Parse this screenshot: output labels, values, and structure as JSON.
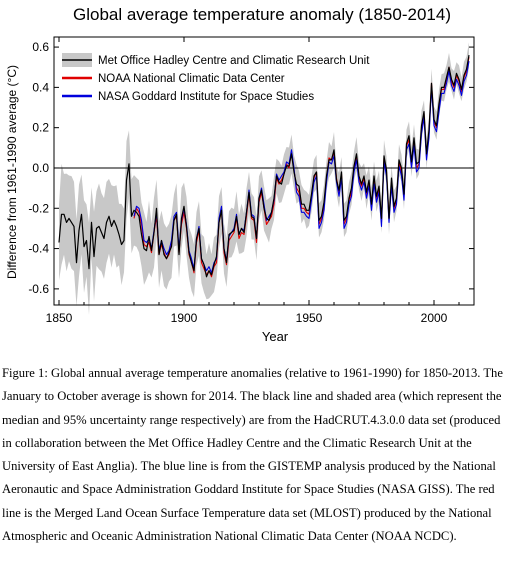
{
  "chart_data": {
    "type": "line",
    "title": "Global average temperature anomaly (1850-2014)",
    "xlabel": "Year",
    "ylabel": "Difference from 1961-1990 average (°C)",
    "xlim": [
      1848,
      2016
    ],
    "ylim": [
      -0.68,
      0.65
    ],
    "xticks": [
      1850,
      1900,
      1950,
      2000
    ],
    "yticks": [
      -0.6,
      -0.4,
      -0.2,
      0.0,
      0.2,
      0.4,
      0.6
    ],
    "ytick_labels": [
      "-0.6",
      "-0.4",
      "-0.2",
      "0.0",
      "0.2",
      "0.4",
      "0.6"
    ],
    "zero_line": true,
    "grid": false,
    "legend_position": "top",
    "colors": {
      "hadcrut": "#000000",
      "band": "#c8c8c8",
      "noaa": "#e00000",
      "nasa": "#0000dd"
    },
    "legend": [
      {
        "name": "Met Office Hadley Centre and Climatic Research Unit",
        "style": "band-line",
        "color": "#000000"
      },
      {
        "name": "NOAA National Climatic Data Center",
        "style": "line",
        "color": "#e00000"
      },
      {
        "name": "NASA Goddard Institute for Space Studies",
        "style": "line",
        "color": "#0000dd"
      }
    ],
    "series": [
      {
        "name": "Met Office Hadley Centre and Climatic Research Unit",
        "start_year": 1850,
        "values": [
          -0.37,
          -0.23,
          -0.23,
          -0.27,
          -0.25,
          -0.27,
          -0.29,
          -0.47,
          -0.31,
          -0.23,
          -0.39,
          -0.36,
          -0.5,
          -0.27,
          -0.44,
          -0.3,
          -0.29,
          -0.32,
          -0.35,
          -0.27,
          -0.24,
          -0.29,
          -0.26,
          -0.29,
          -0.33,
          -0.38,
          -0.36,
          -0.06,
          0.02,
          -0.24,
          -0.21,
          -0.22,
          -0.24,
          -0.33,
          -0.4,
          -0.41,
          -0.34,
          -0.41,
          -0.32,
          -0.2,
          -0.43,
          -0.36,
          -0.43,
          -0.45,
          -0.42,
          -0.39,
          -0.26,
          -0.23,
          -0.43,
          -0.25,
          -0.19,
          -0.29,
          -0.42,
          -0.47,
          -0.51,
          -0.35,
          -0.3,
          -0.45,
          -0.48,
          -0.54,
          -0.51,
          -0.53,
          -0.48,
          -0.44,
          -0.27,
          -0.21,
          -0.4,
          -0.47,
          -0.33,
          -0.32,
          -0.31,
          -0.24,
          -0.33,
          -0.3,
          -0.32,
          -0.22,
          -0.12,
          -0.24,
          -0.25,
          -0.35,
          -0.15,
          -0.11,
          -0.2,
          -0.25,
          -0.26,
          -0.22,
          -0.15,
          -0.04,
          -0.07,
          -0.08,
          -0.03,
          0.01,
          0.01,
          0.07,
          -0.02,
          -0.08,
          -0.09,
          -0.18,
          -0.18,
          -0.21,
          -0.21,
          -0.13,
          -0.04,
          -0.02,
          -0.26,
          -0.24,
          -0.17,
          -0.04,
          0.04,
          0.04,
          0.09,
          -0.06,
          -0.11,
          -0.02,
          -0.26,
          -0.24,
          -0.15,
          -0.1,
          0.01,
          0.07,
          -0.04,
          -0.08,
          -0.04,
          -0.12,
          -0.06,
          -0.18,
          -0.04,
          -0.14,
          -0.09,
          -0.25,
          0.06,
          -0.01,
          -0.25,
          -0.05,
          -0.19,
          -0.15,
          0.04,
          0.0,
          -0.13,
          0.12,
          0.16,
          0.03,
          0.15,
          0.02,
          0.03,
          0.21,
          0.28,
          0.07,
          0.19,
          0.42,
          0.24,
          0.21,
          0.32,
          0.4,
          0.4,
          0.45,
          0.5,
          0.44,
          0.41,
          0.47,
          0.44,
          0.39,
          0.46,
          0.49,
          0.56
        ],
        "color": "#000000"
      },
      {
        "name": "NOAA National Climatic Data Center",
        "start_year": 1880,
        "values": [
          -0.25,
          -0.2,
          -0.22,
          -0.28,
          -0.38,
          -0.39,
          -0.37,
          -0.42,
          -0.32,
          -0.24,
          -0.43,
          -0.38,
          -0.42,
          -0.45,
          -0.43,
          -0.38,
          -0.26,
          -0.24,
          -0.42,
          -0.28,
          -0.22,
          -0.3,
          -0.43,
          -0.47,
          -0.52,
          -0.37,
          -0.31,
          -0.47,
          -0.5,
          -0.53,
          -0.51,
          -0.54,
          -0.49,
          -0.47,
          -0.27,
          -0.21,
          -0.42,
          -0.48,
          -0.36,
          -0.34,
          -0.32,
          -0.25,
          -0.35,
          -0.32,
          -0.33,
          -0.24,
          -0.13,
          -0.25,
          -0.26,
          -0.37,
          -0.17,
          -0.12,
          -0.2,
          -0.28,
          -0.26,
          -0.24,
          -0.18,
          -0.05,
          -0.08,
          -0.06,
          -0.03,
          0.02,
          0.0,
          0.08,
          -0.01,
          -0.1,
          -0.12,
          -0.2,
          -0.2,
          -0.22,
          -0.23,
          -0.14,
          -0.05,
          -0.02,
          -0.28,
          -0.25,
          -0.19,
          -0.05,
          0.05,
          0.04,
          0.08,
          -0.05,
          -0.12,
          -0.03,
          -0.28,
          -0.25,
          -0.16,
          -0.12,
          0.0,
          0.06,
          -0.05,
          -0.09,
          -0.05,
          -0.13,
          -0.07,
          -0.19,
          -0.06,
          -0.15,
          -0.1,
          -0.27,
          0.05,
          -0.02,
          -0.25,
          -0.07,
          -0.2,
          -0.16,
          0.03,
          -0.02,
          -0.14,
          0.11,
          0.14,
          0.02,
          0.13,
          0.0,
          0.02,
          0.19,
          0.27,
          0.06,
          0.17,
          0.42,
          0.23,
          0.2,
          0.3,
          0.39,
          0.39,
          0.44,
          0.5,
          0.43,
          0.4,
          0.46,
          0.43,
          0.38,
          0.45,
          0.48,
          0.55
        ],
        "color": "#e00000"
      },
      {
        "name": "NASA Goddard Institute for Space Studies",
        "start_year": 1880,
        "values": [
          -0.24,
          -0.19,
          -0.2,
          -0.26,
          -0.36,
          -0.37,
          -0.35,
          -0.4,
          -0.31,
          -0.22,
          -0.41,
          -0.36,
          -0.4,
          -0.43,
          -0.41,
          -0.36,
          -0.24,
          -0.22,
          -0.4,
          -0.26,
          -0.2,
          -0.28,
          -0.41,
          -0.45,
          -0.5,
          -0.35,
          -0.29,
          -0.45,
          -0.48,
          -0.51,
          -0.49,
          -0.52,
          -0.47,
          -0.45,
          -0.25,
          -0.19,
          -0.4,
          -0.46,
          -0.34,
          -0.32,
          -0.3,
          -0.23,
          -0.33,
          -0.3,
          -0.31,
          -0.22,
          -0.11,
          -0.23,
          -0.24,
          -0.35,
          -0.15,
          -0.1,
          -0.18,
          -0.26,
          -0.24,
          -0.22,
          -0.16,
          -0.03,
          -0.06,
          -0.04,
          -0.02,
          0.03,
          0.02,
          0.09,
          0.0,
          -0.12,
          -0.14,
          -0.22,
          -0.22,
          -0.24,
          -0.25,
          -0.16,
          -0.07,
          -0.04,
          -0.3,
          -0.27,
          -0.21,
          -0.07,
          0.03,
          0.02,
          0.06,
          -0.07,
          -0.14,
          -0.05,
          -0.3,
          -0.27,
          -0.18,
          -0.14,
          -0.02,
          0.04,
          -0.07,
          -0.11,
          -0.07,
          -0.15,
          -0.09,
          -0.21,
          -0.08,
          -0.17,
          -0.12,
          -0.29,
          0.03,
          -0.04,
          -0.27,
          -0.09,
          -0.22,
          -0.18,
          0.01,
          -0.04,
          -0.16,
          0.09,
          0.12,
          0.0,
          0.11,
          -0.02,
          0.0,
          0.17,
          0.25,
          0.04,
          0.15,
          0.4,
          0.21,
          0.18,
          0.28,
          0.37,
          0.37,
          0.42,
          0.48,
          0.41,
          0.38,
          0.44,
          0.41,
          0.36,
          0.43,
          0.46,
          0.53
        ],
        "color": "#0000dd"
      }
    ],
    "uncertainty_band": {
      "name": "Met Office Hadley Centre and Climatic Research Unit",
      "description_ref": "95% uncertainty range",
      "start_year": 1850,
      "halfwidth_start": 0.22,
      "halfwidth_1900": 0.13,
      "halfwidth_1950": 0.08,
      "halfwidth_2014": 0.06
    }
  },
  "caption": {
    "text": "Figure 1: Global annual average temperature anomalies (relative to 1961-1990) for 1850-2013. The January to October average is shown for 2014. The black line and shaded area (which represent the median and 95% uncertainty range respectively) are from the HadCRUT.4.3.0.0 data set (produced in collaboration between the Met Office Hadley Centre and the Climatic Research Unit at the University of East Anglia). The blue line is from the GISTEMP analysis produced by the National Aeronautic and Space Administration Goddard Institute for Space Studies (NASA GISS). The red line is the Merged Land Ocean Surface Temperature data set (MLOST) produced by the National Atmospheric and Oceanic Administration National Climatic Data Center (NOAA NCDC)."
  }
}
